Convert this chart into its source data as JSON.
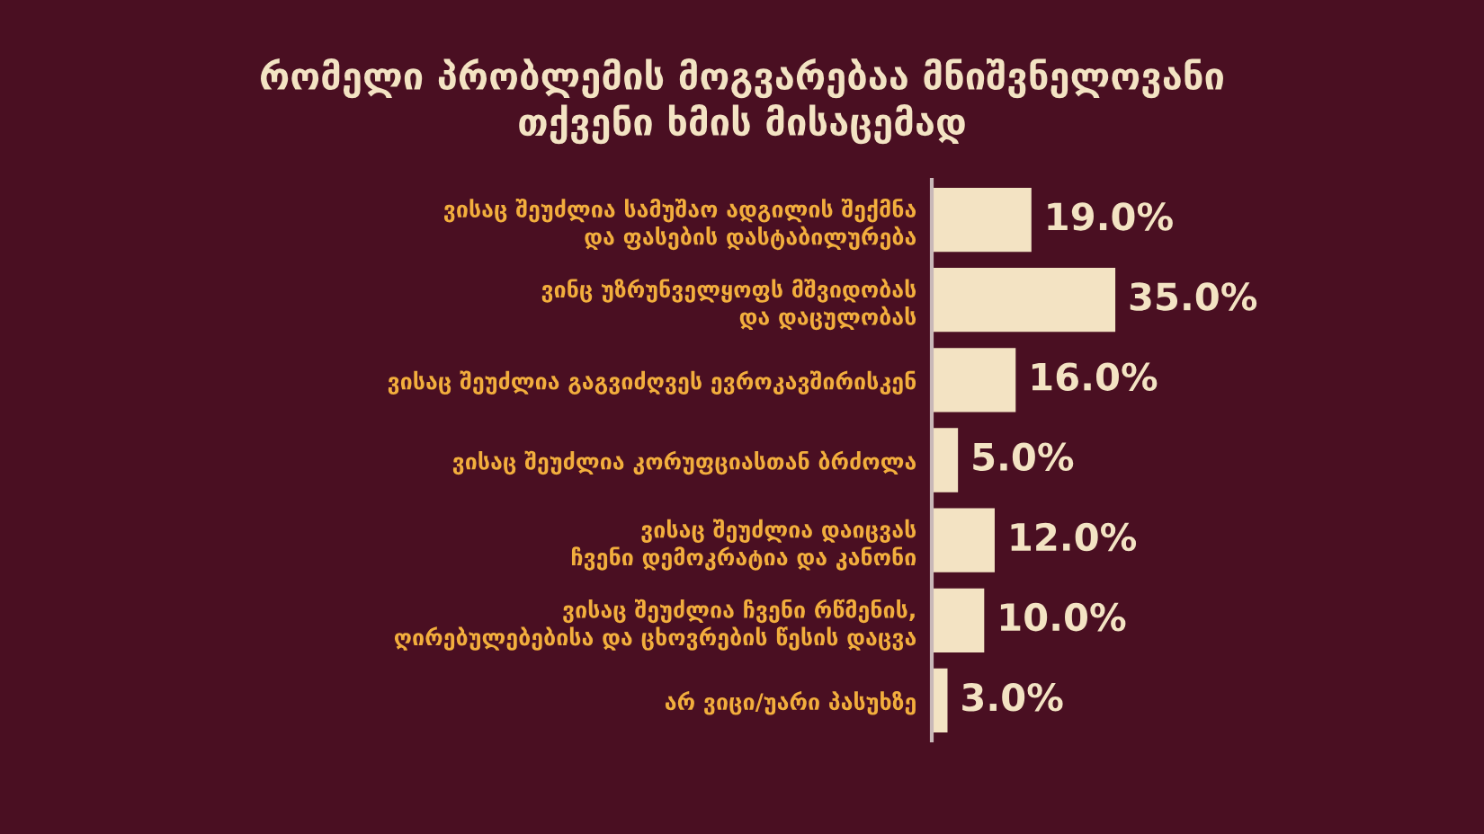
{
  "chart_data": {
    "type": "bar",
    "orientation": "horizontal",
    "title": "რომელი პრობლემის მოგვარებაა მნიშვნელოვანი\nთქვენი ხმის მისაცემად",
    "categories": [
      "ვისაც შეუძლია სამუშაო ადგილის შექმნა\nდა ფასების დასტაბილურება",
      "ვინც უზრუნველყოფს მშვიდობას\nდა დაცულობას",
      "ვისაც შეუძლია გაგვიძღვეს ევროკავშირისკენ",
      "ვისაც შეუძლია კორუფციასთან ბრძოლა",
      "ვისაც შეუძლია დაიცვას\nჩვენი დემოკრატია და კანონი",
      "ვისაც შეუძლია ჩვენი რწმენის,\nღირებულებებისა და ცხოვრების წესის დაცვა",
      "არ ვიცი/უარი პასუხზე"
    ],
    "values": [
      19.0,
      35.0,
      16.0,
      5.0,
      12.0,
      10.0,
      3.0
    ],
    "value_labels": [
      "19.0%",
      "35.0%",
      "16.0%",
      "5.0%",
      "12.0%",
      "10.0%",
      "3.0%"
    ],
    "color": "#f3e3c3",
    "grid": false,
    "legend": false
  }
}
